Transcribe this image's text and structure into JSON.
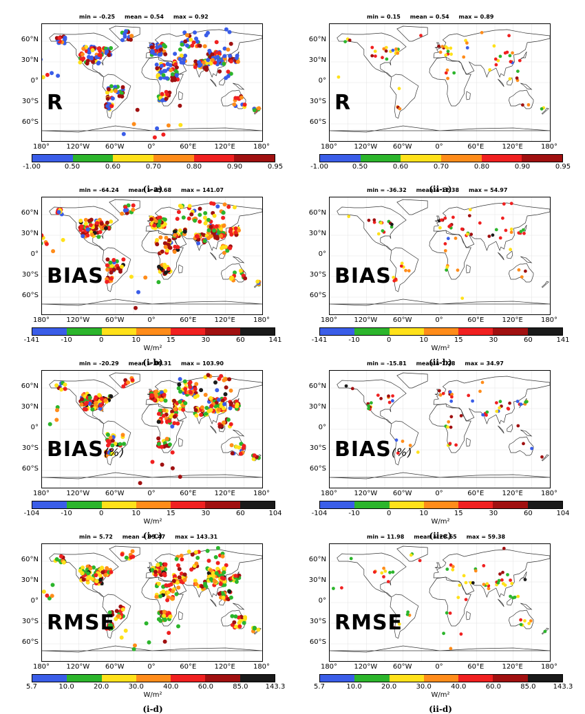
{
  "lat_labels": [
    "60°N",
    "30°N",
    "0°",
    "30°S",
    "60°S"
  ],
  "lon_labels": [
    "180°",
    "120°W",
    "60°W",
    "0°",
    "60°E",
    "120°E",
    "180°"
  ],
  "scales": {
    "R": {
      "colors": [
        "#3a5de8",
        "#2cb52c",
        "#ffe11a",
        "#ff8c1a",
        "#f02020",
        "#a01010"
      ],
      "ticks": [
        "-1.00",
        "0.50",
        "0.60",
        "0.70",
        "0.80",
        "0.90",
        "0.95"
      ]
    },
    "BIAS": {
      "colors": [
        "#3a5de8",
        "#2cb52c",
        "#ffe11a",
        "#ff8c1a",
        "#f02020",
        "#a01010",
        "#1a1a1a"
      ]
    }
  },
  "panels": [
    {
      "id": "i-a",
      "metric": "R",
      "suffix": "",
      "stats": "min = -0.25     mean = 0.54     max = 0.92",
      "caption": "(i-a)",
      "unit": "",
      "scale": "R",
      "ticks": [
        "-1.00",
        "0.50",
        "0.60",
        "0.70",
        "0.80",
        "0.90",
        "0.95"
      ],
      "dense": true
    },
    {
      "id": "ii-a",
      "metric": "R",
      "suffix": "",
      "stats": "min = 0.15     mean = 0.54     max = 0.89",
      "caption": "(ii-a)",
      "unit": "",
      "scale": "R",
      "ticks": [
        "-1.00",
        "0.50",
        "0.60",
        "0.70",
        "0.80",
        "0.90",
        "0.95"
      ],
      "dense": false
    },
    {
      "id": "i-b",
      "metric": "BIAS",
      "suffix": "",
      "stats": "min = -64.24     mean = 25.68     max = 141.07",
      "caption": "(i-b)",
      "unit": "W/m²",
      "scale": "BIAS",
      "ticks": [
        "-141",
        "-10",
        "0",
        "10",
        "15",
        "30",
        "60",
        "141"
      ],
      "dense": true
    },
    {
      "id": "ii-b",
      "metric": "BIAS",
      "suffix": "",
      "stats": "min = -36.32     mean = 12.38     max = 54.97",
      "caption": "(ii-b)",
      "unit": "W/m²",
      "scale": "BIAS",
      "ticks": [
        "-141",
        "-10",
        "0",
        "10",
        "15",
        "30",
        "60",
        "141"
      ],
      "dense": false
    },
    {
      "id": "i-c",
      "metric": "BIAS",
      "suffix": "(%)",
      "stats": "min = -20.29     mean = 16.31     max = 103.90",
      "caption": "(i-c)",
      "unit": "W/m²",
      "scale": "BIAS",
      "ticks": [
        "-104",
        "-10",
        "0",
        "10",
        "15",
        "30",
        "60",
        "104"
      ],
      "dense": true
    },
    {
      "id": "ii-c",
      "metric": "BIAS",
      "suffix": "(%)",
      "stats": "min = -15.81     mean = 7.28     max = 34.97",
      "caption": "(ii-c)",
      "unit": "W/m²",
      "scale": "BIAS",
      "ticks": [
        "-104",
        "-10",
        "0",
        "10",
        "15",
        "30",
        "60",
        "104"
      ],
      "dense": false
    },
    {
      "id": "i-d",
      "metric": "RMSE",
      "suffix": "",
      "stats": "min = 5.72     mean = 35.47     max = 143.31",
      "caption": "(i-d)",
      "unit": "W/m²",
      "scale": "BIAS",
      "ticks": [
        "5.7",
        "10.0",
        "20.0",
        "30.0",
        "40.0",
        "60.0",
        "85.0",
        "143.3"
      ],
      "dense": true
    },
    {
      "id": "ii-d",
      "metric": "RMSE",
      "suffix": "",
      "stats": "min = 11.98     mean = 28.65     max = 59.38",
      "caption": "(ii-d)",
      "unit": "W/m²",
      "scale": "BIAS",
      "ticks": [
        "5.7",
        "10.0",
        "20.0",
        "30.0",
        "40.0",
        "60.0",
        "85.0",
        "143.3"
      ],
      "dense": false
    }
  ]
}
